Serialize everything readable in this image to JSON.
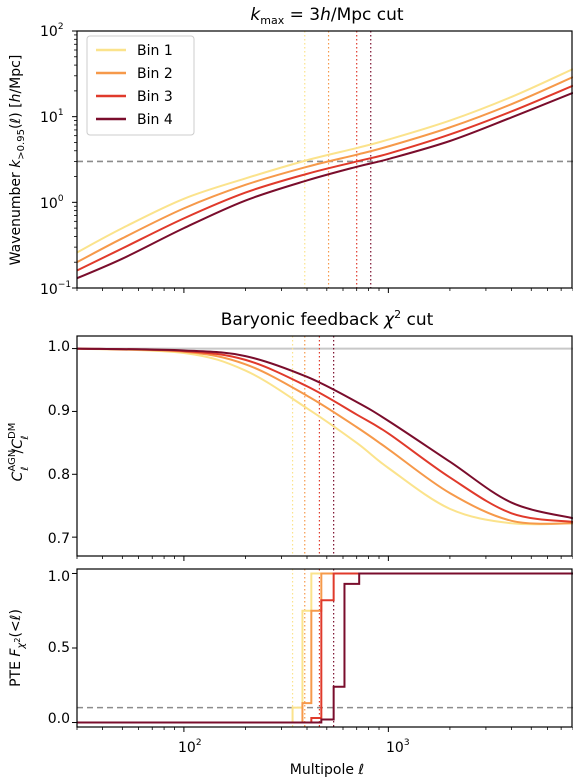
{
  "chart_data": [
    {
      "panel": "top",
      "type": "line",
      "title": "k_max = 3h/Mpc cut",
      "xlabel": "",
      "ylabel": "Wavenumber k_>0.95(ℓ) [h/Mpc]",
      "xscale": "log",
      "yscale": "log",
      "xlim": [
        30,
        8000
      ],
      "ylim": [
        0.1,
        100
      ],
      "y_ticks": [
        "10^-1",
        "10^0",
        "10^1",
        "10^2"
      ],
      "legend": "top-left",
      "legend_entries": [
        "Bin 1",
        "Bin 2",
        "Bin 3",
        "Bin 4"
      ],
      "hline": {
        "y": 3,
        "style": "dashed",
        "color": "#8c8c8c"
      },
      "vlines": [
        {
          "x": 390,
          "series": "Bin 1"
        },
        {
          "x": 510,
          "series": "Bin 2"
        },
        {
          "x": 700,
          "series": "Bin 3"
        },
        {
          "x": 820,
          "series": "Bin 4"
        }
      ],
      "series": [
        {
          "name": "Bin 1",
          "color": "#fbe38c",
          "x": [
            30,
            50,
            100,
            200,
            400,
            700,
            1000,
            2000,
            4000,
            8000
          ],
          "y": [
            0.26,
            0.5,
            1.1,
            1.9,
            3.1,
            4.3,
            5.4,
            9.0,
            17.0,
            36.0
          ]
        },
        {
          "name": "Bin 2",
          "color": "#f6994a",
          "x": [
            30,
            50,
            100,
            200,
            400,
            700,
            1000,
            2000,
            4000,
            8000
          ],
          "y": [
            0.2,
            0.38,
            0.85,
            1.6,
            2.6,
            3.6,
            4.5,
            7.5,
            14.0,
            29.0
          ]
        },
        {
          "name": "Bin 3",
          "color": "#e03a2b",
          "x": [
            30,
            50,
            100,
            200,
            400,
            700,
            1000,
            2000,
            4000,
            8000
          ],
          "y": [
            0.16,
            0.29,
            0.65,
            1.3,
            2.15,
            3.0,
            3.7,
            6.2,
            11.5,
            23.0
          ]
        },
        {
          "name": "Bin 4",
          "color": "#7a0d2c",
          "x": [
            30,
            50,
            100,
            200,
            400,
            700,
            1000,
            2000,
            4000,
            8000
          ],
          "y": [
            0.13,
            0.22,
            0.5,
            1.05,
            1.8,
            2.6,
            3.2,
            5.2,
            9.8,
            19.0
          ]
        }
      ]
    },
    {
      "panel": "middle",
      "type": "line",
      "title": "Baryonic feedback χ² cut",
      "xlabel": "",
      "ylabel": "C_ℓ^AGN / C_ℓ^DM",
      "xscale": "log",
      "xlim": [
        30,
        8000
      ],
      "ylim": [
        0.67,
        1.02
      ],
      "y_ticks": [
        "0.7",
        "0.8",
        "0.9",
        "1.0"
      ],
      "hline": {
        "y": 1.0,
        "style": "solid",
        "color": "#c8c8c8"
      },
      "vlines": [
        {
          "x": 340,
          "series": "Bin 1"
        },
        {
          "x": 390,
          "series": "Bin 2"
        },
        {
          "x": 460,
          "series": "Bin 3"
        },
        {
          "x": 540,
          "series": "Bin 4"
        }
      ],
      "series": [
        {
          "name": "Bin 1",
          "color": "#fbe38c",
          "x": [
            30,
            100,
            200,
            400,
            700,
            1000,
            2000,
            4000,
            8000
          ],
          "y": [
            1.0,
            0.993,
            0.965,
            0.905,
            0.85,
            0.81,
            0.745,
            0.722,
            0.722
          ]
        },
        {
          "name": "Bin 2",
          "color": "#f6994a",
          "x": [
            30,
            100,
            200,
            400,
            700,
            1000,
            2000,
            4000,
            8000
          ],
          "y": [
            1.0,
            0.995,
            0.975,
            0.925,
            0.875,
            0.84,
            0.77,
            0.726,
            0.722
          ]
        },
        {
          "name": "Bin 3",
          "color": "#e03a2b",
          "x": [
            30,
            100,
            200,
            400,
            700,
            1000,
            2000,
            4000,
            8000
          ],
          "y": [
            1.0,
            0.996,
            0.982,
            0.94,
            0.895,
            0.865,
            0.795,
            0.738,
            0.724
          ]
        },
        {
          "name": "Bin 4",
          "color": "#7a0d2c",
          "x": [
            30,
            100,
            200,
            400,
            700,
            1000,
            2000,
            4000,
            8000
          ],
          "y": [
            1.0,
            0.997,
            0.988,
            0.955,
            0.915,
            0.885,
            0.82,
            0.755,
            0.73
          ]
        }
      ]
    },
    {
      "panel": "bottom",
      "type": "line",
      "title": "",
      "xlabel": "Multipole ℓ",
      "ylabel": "PTE F_χ²(<ℓ)",
      "xscale": "log",
      "xlim": [
        30,
        8000
      ],
      "ylim": [
        -0.03,
        1.03
      ],
      "x_ticks": [
        "10^2",
        "10^3"
      ],
      "y_ticks": [
        "0.0",
        "0.5",
        "1.0"
      ],
      "hline": {
        "y": 0.1,
        "style": "dashed",
        "color": "#8c8c8c"
      },
      "vlines": [
        {
          "x": 340,
          "series": "Bin 1"
        },
        {
          "x": 390,
          "series": "Bin 2"
        },
        {
          "x": 460,
          "series": "Bin 3"
        },
        {
          "x": 540,
          "series": "Bin 4"
        }
      ],
      "series": [
        {
          "name": "Bin 1",
          "color": "#fbe38c",
          "step": true,
          "x": [
            30,
            340,
            340,
            380,
            380,
            420,
            420,
            8000
          ],
          "y": [
            0,
            0,
            0.1,
            0.1,
            0.75,
            0.75,
            1.0,
            1.0
          ]
        },
        {
          "name": "Bin 2",
          "color": "#f6994a",
          "step": true,
          "x": [
            30,
            380,
            380,
            420,
            420,
            470,
            470,
            8000
          ],
          "y": [
            0,
            0,
            0.13,
            0.13,
            0.75,
            0.75,
            1.0,
            1.0
          ]
        },
        {
          "name": "Bin 3",
          "color": "#e03a2b",
          "step": true,
          "x": [
            30,
            420,
            420,
            470,
            470,
            540,
            540,
            8000
          ],
          "y": [
            0,
            0,
            0.03,
            0.03,
            0.82,
            0.82,
            1.0,
            1.0
          ]
        },
        {
          "name": "Bin 4",
          "color": "#7a0d2c",
          "step": true,
          "x": [
            30,
            470,
            470,
            540,
            540,
            610,
            610,
            720,
            720,
            8000
          ],
          "y": [
            0,
            0,
            0.02,
            0.02,
            0.24,
            0.24,
            0.93,
            0.93,
            1.0,
            1.0
          ]
        }
      ]
    }
  ]
}
